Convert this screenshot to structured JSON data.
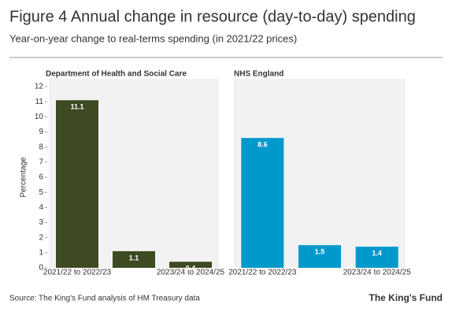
{
  "title": "Figure 4 Annual change in resource (day-to-day) spending",
  "subtitle": "Year-on-year change to real-terms spending (in 2021/22 prices)",
  "source": "Source: The King's Fund analysis of HM Treasury data",
  "logo": "The King's Fund",
  "chart_data": [
    {
      "type": "bar",
      "title": "Department of Health and Social Care",
      "y_label": "Percentage",
      "categories": [
        "2021/22 to 2022/23",
        null,
        "2023/24 to 2024/25"
      ],
      "values": [
        11.1,
        1.1,
        0.4
      ],
      "color": "#3d4a22",
      "ylim": [
        0,
        12
      ],
      "yticks": [
        0,
        1,
        2,
        3,
        4,
        5,
        6,
        7,
        8,
        9,
        10,
        11,
        12
      ]
    },
    {
      "type": "bar",
      "title": "NHS England",
      "categories": [
        "2021/22 to 2022/23",
        null,
        "2023/24 to 2024/25"
      ],
      "values": [
        8.6,
        1.5,
        1.4
      ],
      "color": "#0099cc",
      "ylim": [
        0,
        12
      ]
    }
  ]
}
